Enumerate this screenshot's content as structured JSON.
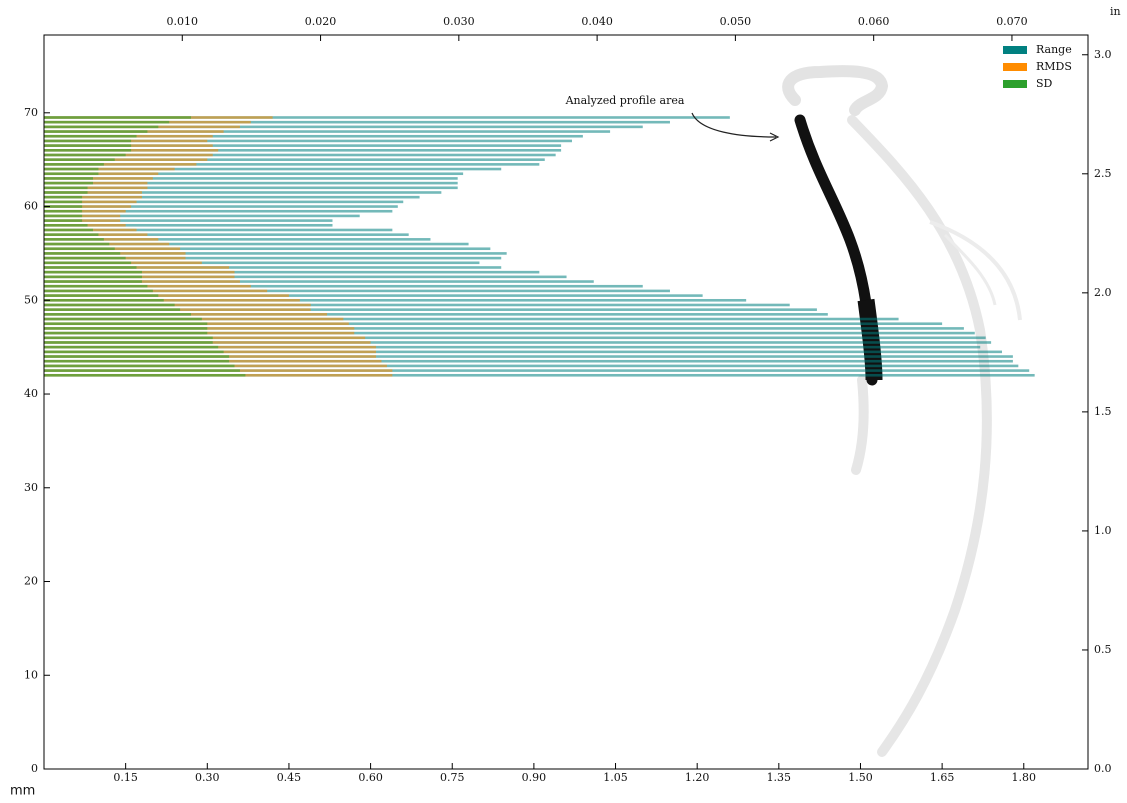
{
  "chart_data": {
    "type": "barh",
    "xlabel": "mm",
    "y2label": "in",
    "annotation": "Analyzed profile area",
    "y": [
      69.5,
      69,
      68.5,
      68,
      67.5,
      67,
      66.5,
      66,
      65.5,
      65,
      64.5,
      64,
      63.5,
      63,
      62.5,
      62,
      61.5,
      61,
      60.5,
      60,
      59.5,
      59,
      58.5,
      58,
      57.5,
      57,
      56.5,
      56,
      55.5,
      55,
      54.5,
      54,
      53.5,
      53,
      52.5,
      52,
      51.5,
      51,
      50.5,
      50,
      49.5,
      49,
      48.5,
      48,
      47.5,
      47,
      46.5,
      46,
      45.5,
      45,
      44.5,
      44,
      43.5,
      43,
      42.5,
      42
    ],
    "series": [
      {
        "name": "Range",
        "color": "#008080",
        "values": [
          1.26,
          1.15,
          1.1,
          1.04,
          0.99,
          0.97,
          0.95,
          0.95,
          0.94,
          0.92,
          0.91,
          0.84,
          0.77,
          0.76,
          0.76,
          0.76,
          0.73,
          0.69,
          0.66,
          0.65,
          0.64,
          0.58,
          0.53,
          0.53,
          0.64,
          0.67,
          0.71,
          0.78,
          0.82,
          0.85,
          0.84,
          0.8,
          0.84,
          0.91,
          0.96,
          1.01,
          1.1,
          1.15,
          1.21,
          1.29,
          1.37,
          1.42,
          1.44,
          1.57,
          1.65,
          1.69,
          1.71,
          1.73,
          1.74,
          1.72,
          1.76,
          1.78,
          1.78,
          1.79,
          1.81,
          1.82
        ]
      },
      {
        "name": "RMDS",
        "color": "#ff8c00",
        "values": [
          0.42,
          0.38,
          0.36,
          0.33,
          0.31,
          0.3,
          0.31,
          0.32,
          0.31,
          0.3,
          0.28,
          0.24,
          0.21,
          0.2,
          0.19,
          0.19,
          0.18,
          0.18,
          0.17,
          0.16,
          0.15,
          0.14,
          0.14,
          0.15,
          0.17,
          0.19,
          0.21,
          0.23,
          0.25,
          0.26,
          0.26,
          0.29,
          0.34,
          0.35,
          0.35,
          0.36,
          0.38,
          0.41,
          0.45,
          0.47,
          0.49,
          0.49,
          0.52,
          0.55,
          0.56,
          0.57,
          0.57,
          0.59,
          0.6,
          0.61,
          0.61,
          0.61,
          0.62,
          0.63,
          0.64,
          0.64
        ]
      },
      {
        "name": "SD",
        "color": "#2ca02c",
        "values": [
          0.27,
          0.23,
          0.21,
          0.19,
          0.17,
          0.16,
          0.16,
          0.16,
          0.15,
          0.13,
          0.11,
          0.1,
          0.1,
          0.09,
          0.09,
          0.08,
          0.08,
          0.07,
          0.07,
          0.07,
          0.07,
          0.07,
          0.07,
          0.08,
          0.09,
          0.1,
          0.11,
          0.12,
          0.13,
          0.14,
          0.15,
          0.16,
          0.17,
          0.18,
          0.18,
          0.18,
          0.19,
          0.2,
          0.21,
          0.22,
          0.24,
          0.25,
          0.27,
          0.29,
          0.3,
          0.3,
          0.3,
          0.31,
          0.31,
          0.32,
          0.33,
          0.34,
          0.34,
          0.35,
          0.36,
          0.37
        ]
      }
    ],
    "xlim": [
      0,
      1.918
    ],
    "xticks": [
      0.15,
      {
        "value": 0.3,
        "label": "0.30"
      },
      0.45,
      {
        "value": 0.6,
        "label": "0.60"
      },
      0.75,
      {
        "value": 0.9,
        "label": "0.90"
      },
      1.05,
      {
        "value": 1.2,
        "label": "1.20"
      },
      1.35,
      {
        "value": 1.5,
        "label": "1.50"
      },
      1.65,
      {
        "value": 1.8,
        "label": "1.80"
      }
    ],
    "x2lim": [
      0,
      0.0755
    ],
    "x2ticks": [
      {
        "value": 0.01,
        "label": "0.010"
      },
      {
        "value": 0.02,
        "label": "0.020"
      },
      {
        "value": 0.03,
        "label": "0.030"
      },
      {
        "value": 0.04,
        "label": "0.040"
      },
      {
        "value": 0.05,
        "label": "0.050"
      },
      {
        "value": 0.06,
        "label": "0.060"
      },
      {
        "value": 0.07,
        "label": "0.070"
      }
    ],
    "ylim": [
      0,
      78.3
    ],
    "yticks": [
      0,
      10,
      20,
      30,
      40,
      50,
      60,
      70
    ],
    "y2lim": [
      0,
      3.083
    ],
    "y2ticks": [
      {
        "value": 0,
        "label": "0.0"
      },
      0.5,
      {
        "value": 1,
        "label": "1.0"
      },
      1.5,
      {
        "value": 2,
        "label": "2.0"
      },
      2.5,
      {
        "value": 3,
        "label": "3.0"
      }
    ],
    "legend": "upper right"
  }
}
